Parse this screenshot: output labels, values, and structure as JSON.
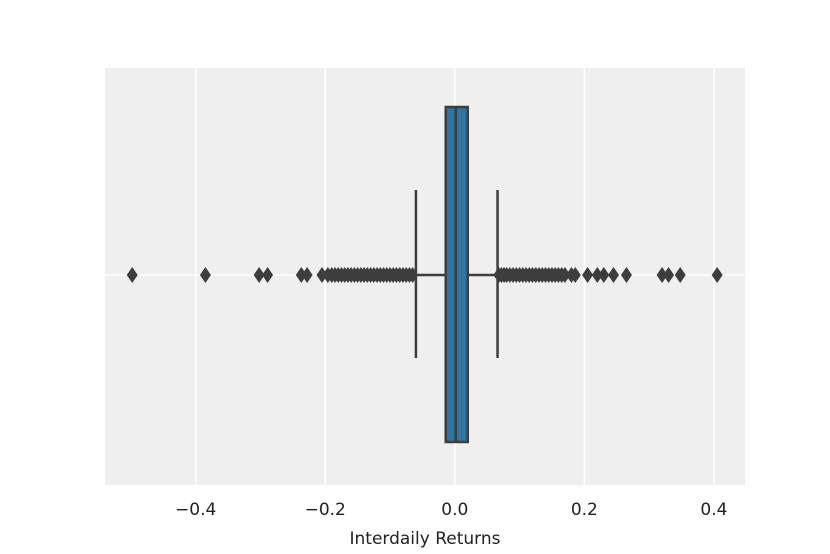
{
  "chart_data": {
    "type": "box",
    "x_label": "Interdaily Returns",
    "xlim": [
      -0.54,
      0.448
    ],
    "xticks": [
      {
        "value": -0.4,
        "label": "−0.4"
      },
      {
        "value": -0.2,
        "label": "−0.2"
      },
      {
        "value": 0.0,
        "label": "0.0"
      },
      0.2,
      0.4
    ],
    "grid": true,
    "color": "#3274a1",
    "whislo": -0.06,
    "q1": -0.014,
    "med": 0.0015,
    "q3": 0.02,
    "whishi": 0.066,
    "fliers": [
      -0.498,
      -0.385,
      -0.302,
      -0.289,
      -0.237,
      -0.228,
      -0.205,
      -0.196,
      -0.19,
      -0.185,
      -0.18,
      -0.175,
      -0.17,
      -0.165,
      -0.16,
      -0.155,
      -0.15,
      -0.145,
      -0.14,
      -0.135,
      -0.13,
      -0.125,
      -0.12,
      -0.115,
      -0.11,
      -0.105,
      -0.1,
      -0.095,
      -0.09,
      -0.085,
      -0.08,
      -0.075,
      -0.07,
      -0.065,
      0.068,
      0.072,
      0.076,
      0.08,
      0.085,
      0.09,
      0.095,
      0.1,
      0.105,
      0.11,
      0.115,
      0.12,
      0.125,
      0.13,
      0.135,
      0.14,
      0.145,
      0.15,
      0.155,
      0.16,
      0.165,
      0.17,
      0.18,
      0.186,
      0.205,
      0.22,
      0.23,
      0.245,
      0.265,
      0.32,
      0.33,
      0.348,
      0.405
    ]
  }
}
